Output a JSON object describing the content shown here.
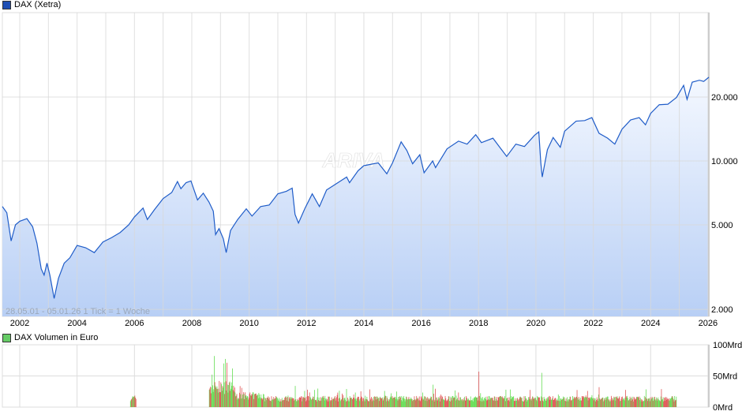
{
  "chart_data": [
    {
      "type": "area",
      "title": "DAX (Xetra)",
      "legend": "DAX (Xetra)",
      "legend_color": "#1f4fb4",
      "info": "28.05.01 - 05.01.26   1 Tick = 1 Woche",
      "watermark": "ARIVA",
      "yscale": "log",
      "ylim": [
        1800,
        36000
      ],
      "xlim": [
        2001.4,
        2026.0
      ],
      "x_ticks": [
        "2002",
        "2004",
        "2006",
        "2008",
        "2010",
        "2012",
        "2014",
        "2016",
        "2018",
        "2020",
        "2022",
        "2024",
        "2026"
      ],
      "y_ticks": [
        {
          "value": 2000,
          "label": "2.000"
        },
        {
          "value": 5000,
          "label": "5.000"
        },
        {
          "value": 10000,
          "label": "10.000"
        },
        {
          "value": 20000,
          "label": "20.000"
        }
      ],
      "grid": true,
      "line_color": "#1f5cc8",
      "points": [
        [
          2001.41,
          6100
        ],
        [
          2001.55,
          5700
        ],
        [
          2001.7,
          4200
        ],
        [
          2001.85,
          5000
        ],
        [
          2002.0,
          5200
        ],
        [
          2002.25,
          5350
        ],
        [
          2002.45,
          4900
        ],
        [
          2002.6,
          4100
        ],
        [
          2002.75,
          3100
        ],
        [
          2002.85,
          2900
        ],
        [
          2002.95,
          3300
        ],
        [
          2003.05,
          2900
        ],
        [
          2003.2,
          2250
        ],
        [
          2003.35,
          2800
        ],
        [
          2003.55,
          3300
        ],
        [
          2003.75,
          3500
        ],
        [
          2004.0,
          4000
        ],
        [
          2004.3,
          3900
        ],
        [
          2004.6,
          3700
        ],
        [
          2004.9,
          4150
        ],
        [
          2005.2,
          4350
        ],
        [
          2005.5,
          4600
        ],
        [
          2005.8,
          5000
        ],
        [
          2006.0,
          5450
        ],
        [
          2006.3,
          6000
        ],
        [
          2006.45,
          5300
        ],
        [
          2006.7,
          5900
        ],
        [
          2007.0,
          6650
        ],
        [
          2007.3,
          7100
        ],
        [
          2007.5,
          8000
        ],
        [
          2007.62,
          7400
        ],
        [
          2007.8,
          7900
        ],
        [
          2007.97,
          8050
        ],
        [
          2008.2,
          6550
        ],
        [
          2008.4,
          7050
        ],
        [
          2008.6,
          6400
        ],
        [
          2008.75,
          5800
        ],
        [
          2008.83,
          4500
        ],
        [
          2008.95,
          4800
        ],
        [
          2009.1,
          4300
        ],
        [
          2009.2,
          3700
        ],
        [
          2009.35,
          4700
        ],
        [
          2009.6,
          5300
        ],
        [
          2009.9,
          5950
        ],
        [
          2010.1,
          5500
        ],
        [
          2010.4,
          6100
        ],
        [
          2010.7,
          6200
        ],
        [
          2011.0,
          7000
        ],
        [
          2011.3,
          7200
        ],
        [
          2011.5,
          7450
        ],
        [
          2011.6,
          5600
        ],
        [
          2011.72,
          5100
        ],
        [
          2011.95,
          6000
        ],
        [
          2012.2,
          7000
        ],
        [
          2012.45,
          6100
        ],
        [
          2012.7,
          7300
        ],
        [
          2013.0,
          7750
        ],
        [
          2013.4,
          8400
        ],
        [
          2013.5,
          7900
        ],
        [
          2013.8,
          9000
        ],
        [
          2014.0,
          9500
        ],
        [
          2014.5,
          9800
        ],
        [
          2014.8,
          8700
        ],
        [
          2015.0,
          9800
        ],
        [
          2015.3,
          12300
        ],
        [
          2015.5,
          11200
        ],
        [
          2015.7,
          9700
        ],
        [
          2015.95,
          10700
        ],
        [
          2016.1,
          8800
        ],
        [
          2016.4,
          10000
        ],
        [
          2016.5,
          9300
        ],
        [
          2016.9,
          11400
        ],
        [
          2017.3,
          12400
        ],
        [
          2017.6,
          12000
        ],
        [
          2017.9,
          13300
        ],
        [
          2018.1,
          12200
        ],
        [
          2018.5,
          12800
        ],
        [
          2018.98,
          10500
        ],
        [
          2019.3,
          12000
        ],
        [
          2019.6,
          11700
        ],
        [
          2019.95,
          13200
        ],
        [
          2020.1,
          13700
        ],
        [
          2020.17,
          9800
        ],
        [
          2020.22,
          8400
        ],
        [
          2020.4,
          11300
        ],
        [
          2020.6,
          12900
        ],
        [
          2020.85,
          11600
        ],
        [
          2021.0,
          13800
        ],
        [
          2021.4,
          15400
        ],
        [
          2021.7,
          15500
        ],
        [
          2021.95,
          16000
        ],
        [
          2022.2,
          13500
        ],
        [
          2022.5,
          12800
        ],
        [
          2022.75,
          12000
        ],
        [
          2023.0,
          14100
        ],
        [
          2023.3,
          15600
        ],
        [
          2023.6,
          16000
        ],
        [
          2023.82,
          14800
        ],
        [
          2024.0,
          16750
        ],
        [
          2024.3,
          18400
        ],
        [
          2024.6,
          18500
        ],
        [
          2024.9,
          19900
        ],
        [
          2025.15,
          22700
        ],
        [
          2025.27,
          19500
        ],
        [
          2025.45,
          23500
        ],
        [
          2025.7,
          24000
        ],
        [
          2025.85,
          23700
        ],
        [
          2026.0,
          24800
        ]
      ]
    },
    {
      "type": "bar",
      "title": "DAX Volumen in Euro",
      "legend": "DAX Volumen in Euro",
      "legend_color": "#66cc66",
      "ylim": [
        0,
        100
      ],
      "y_ticks": [
        {
          "value": 0,
          "label": "0Mrd"
        },
        {
          "value": 50,
          "label": "50Mrd"
        },
        {
          "value": 100,
          "label": "100Mrd"
        }
      ],
      "up_color": "#66dd55",
      "down_color": "#e05555",
      "segments": [
        {
          "from": 2005.85,
          "to": 2006.05,
          "typical": 16,
          "peak": 28
        },
        {
          "from": 2008.6,
          "to": 2009.5,
          "typical": 35,
          "peak": 82
        },
        {
          "from": 2009.5,
          "to": 2010.5,
          "typical": 20,
          "peak": 38
        },
        {
          "from": 2010.5,
          "to": 2024.9,
          "typical": 15,
          "peak": 30
        }
      ],
      "spikes": [
        [
          2008.77,
          82
        ],
        [
          2009.1,
          70
        ],
        [
          2009.4,
          62
        ],
        [
          2011.6,
          34
        ],
        [
          2016.4,
          36
        ],
        [
          2018.0,
          57
        ],
        [
          2020.2,
          55
        ],
        [
          2022.2,
          32
        ]
      ]
    }
  ]
}
